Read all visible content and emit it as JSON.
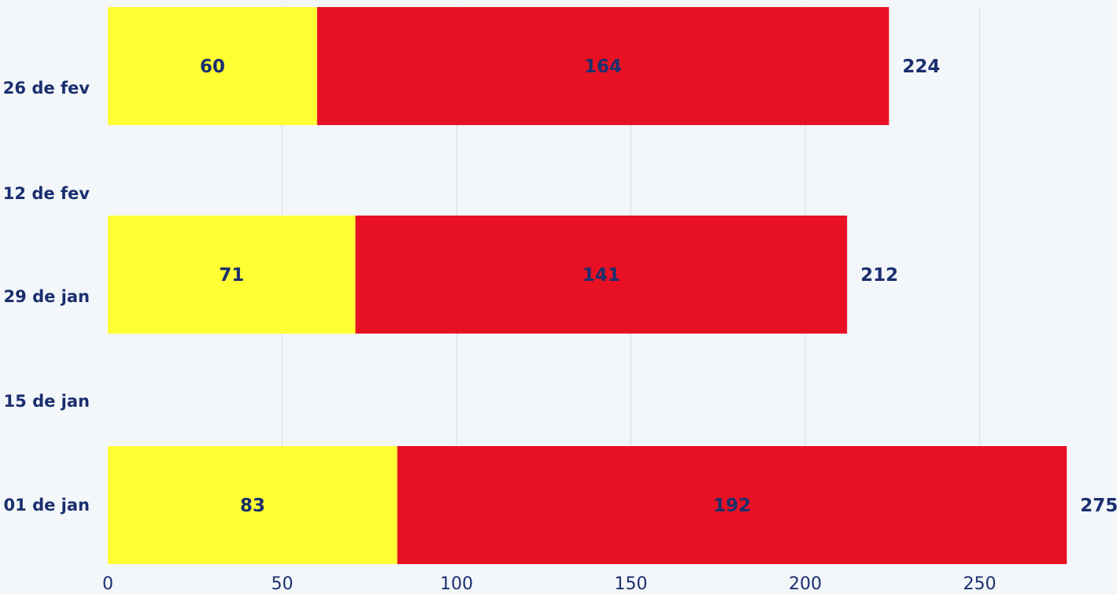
{
  "chart_data": {
    "type": "bar",
    "orientation": "horizontal",
    "stacked": true,
    "categories": [
      "26 de fev",
      "12 de fev",
      "29 de jan",
      "15 de jan",
      "01 de jan"
    ],
    "series": [
      {
        "color": "#ffff33",
        "values": [
          60,
          null,
          71,
          null,
          83
        ]
      },
      {
        "color": "#e81123",
        "values": [
          164,
          null,
          141,
          null,
          192
        ]
      }
    ],
    "totals": [
      224,
      null,
      212,
      null,
      275
    ],
    "x_ticks": [
      0,
      50,
      100,
      150,
      200,
      250
    ],
    "xlim": [
      0,
      275
    ],
    "grid": true,
    "legend": "none",
    "title": "",
    "xlabel": "",
    "ylabel": ""
  }
}
